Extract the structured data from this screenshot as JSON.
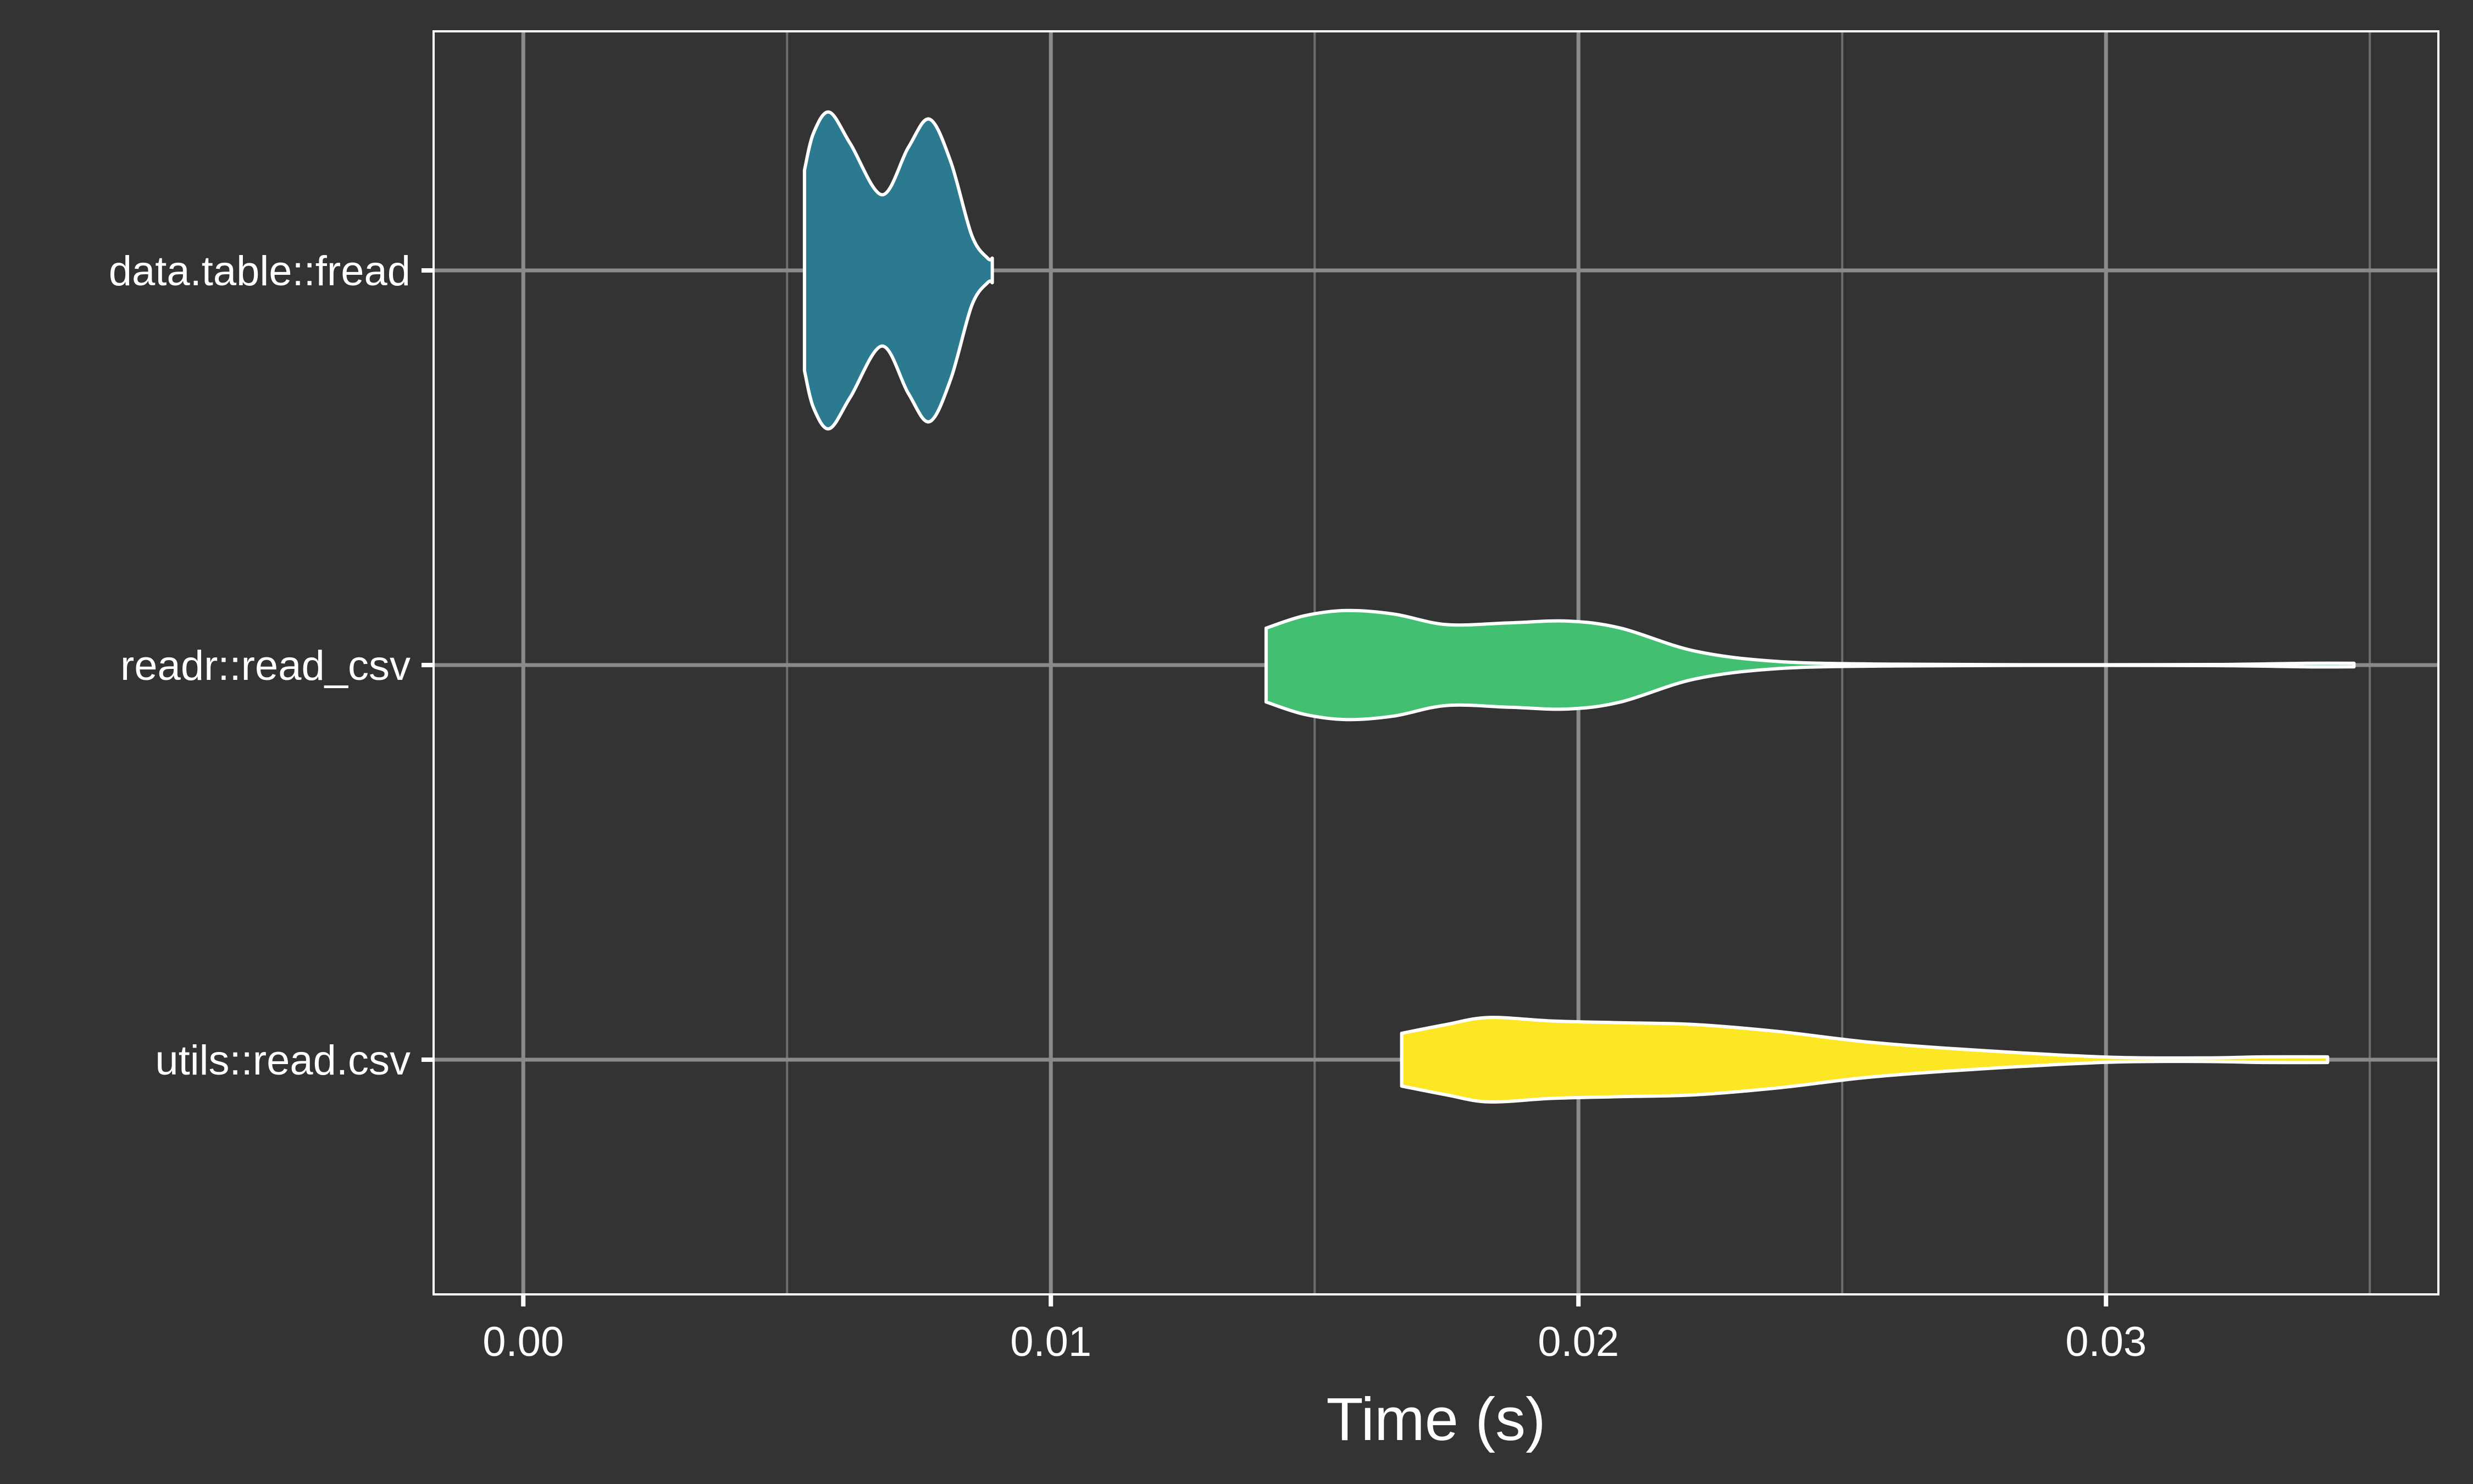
{
  "chart_data": {
    "type": "violin",
    "orientation": "horizontal",
    "xlabel": "Time (s)",
    "ylabel": "",
    "xlim": [
      -0.0017,
      0.0363
    ],
    "x_ticks": [
      0.0,
      0.01,
      0.02,
      0.03
    ],
    "x_tick_labels": [
      "0.00",
      "0.01",
      "0.02",
      "0.03"
    ],
    "x_minor_ticks": [
      0.005,
      0.015,
      0.025,
      0.035
    ],
    "categories": [
      "data.table::fread",
      "readr::read_csv",
      "utils::read.csv"
    ],
    "grid": true,
    "legend": "none",
    "background": "#333333",
    "series": [
      {
        "category": "data.table::fread",
        "color": "#2C7A8F",
        "density_profile": [
          [
            0.00533,
            0.57
          ],
          [
            0.0055,
            0.78
          ],
          [
            0.0058,
            0.9
          ],
          [
            0.0062,
            0.72
          ],
          [
            0.0068,
            0.43
          ],
          [
            0.0073,
            0.7
          ],
          [
            0.0077,
            0.86
          ],
          [
            0.0081,
            0.62
          ],
          [
            0.0085,
            0.2
          ],
          [
            0.0088,
            0.07
          ],
          [
            0.00889,
            0.07
          ]
        ]
      },
      {
        "category": "readr::read_csv",
        "color": "#43BF71",
        "density_profile": [
          [
            0.01408,
            0.21
          ],
          [
            0.0148,
            0.28
          ],
          [
            0.0156,
            0.31
          ],
          [
            0.0165,
            0.29
          ],
          [
            0.0175,
            0.23
          ],
          [
            0.0187,
            0.24
          ],
          [
            0.0198,
            0.25
          ],
          [
            0.0208,
            0.21
          ],
          [
            0.0222,
            0.08
          ],
          [
            0.0238,
            0.02
          ],
          [
            0.026,
            0.005
          ],
          [
            0.029,
            0.002
          ],
          [
            0.032,
            0.003
          ],
          [
            0.0338,
            0.01
          ],
          [
            0.0347,
            0.01
          ]
        ]
      },
      {
        "category": "utils::read.csv",
        "color": "#FDE725",
        "density_profile": [
          [
            0.01665,
            0.15
          ],
          [
            0.0175,
            0.2
          ],
          [
            0.0183,
            0.24
          ],
          [
            0.0195,
            0.22
          ],
          [
            0.0208,
            0.21
          ],
          [
            0.0222,
            0.2
          ],
          [
            0.0238,
            0.16
          ],
          [
            0.0255,
            0.1
          ],
          [
            0.0275,
            0.055
          ],
          [
            0.03,
            0.015
          ],
          [
            0.0318,
            0.01
          ],
          [
            0.033,
            0.016
          ],
          [
            0.0342,
            0.016
          ]
        ]
      }
    ]
  }
}
